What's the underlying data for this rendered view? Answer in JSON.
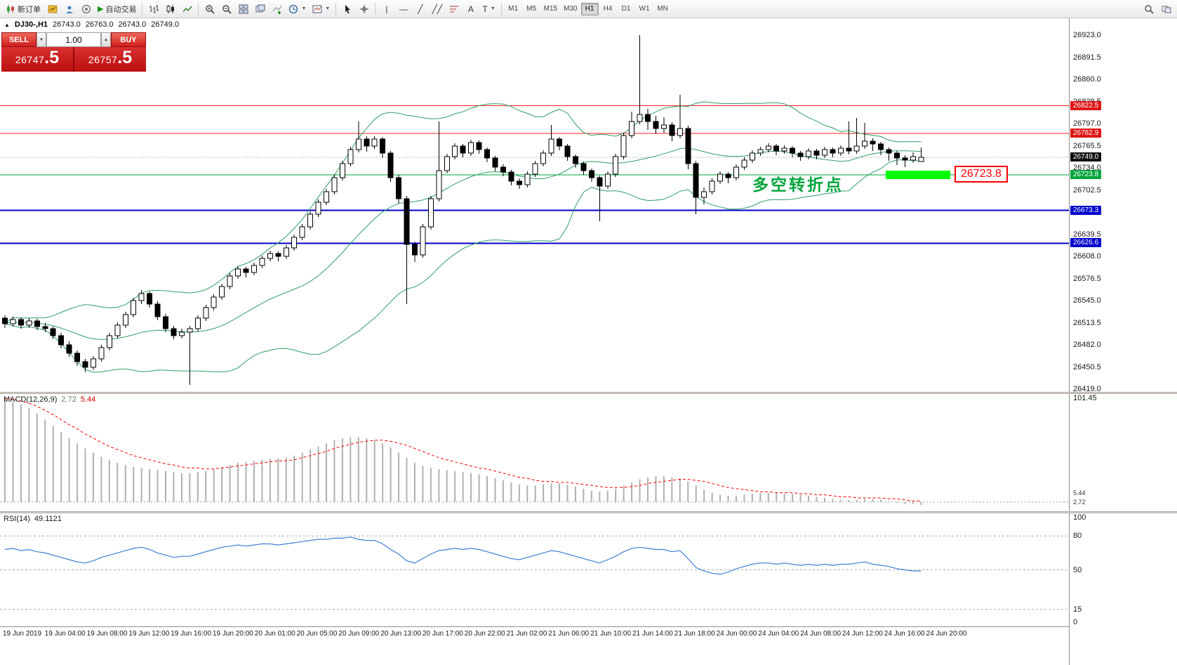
{
  "toolbar": {
    "new_order_label": "新订单",
    "auto_trading_label": "自动交易",
    "timeframes": [
      "M1",
      "M5",
      "M15",
      "M30",
      "H1",
      "H4",
      "D1",
      "W1",
      "MN"
    ],
    "active_timeframe": "H1"
  },
  "icons": {
    "toggle_up": "▲",
    "caret_down": "▼",
    "spin_up": "▲",
    "spin_down": "▼",
    "play": "▶",
    "text_tool": "A",
    "label_tool": "T",
    "vline_tool": "|",
    "hline_tool": "—",
    "trendline_tool": "╱",
    "channel_tool": "╱╱"
  },
  "symbol_header": {
    "title": "DJ30-,H1",
    "open": "26743.0",
    "high": "26763.0",
    "low": "26743.0",
    "close": "26749.0"
  },
  "order_panel": {
    "sell_label": "SELL",
    "buy_label": "BUY",
    "volume": "1.00",
    "sell_price_main": "26747",
    "sell_price_frac": ".5",
    "buy_price_main": "26757",
    "buy_price_frac": ".5"
  },
  "annotation": {
    "text": "多空转折点",
    "color": "#00a43b",
    "price": 26713
  },
  "highlight": {
    "label": "26723.8",
    "price": 26723.8,
    "bar_color": "#00ff00",
    "label_color": "#ff0000"
  },
  "time_labels": [
    "19 Jun 2019",
    "19 Jun 04:00",
    "19 Jun 08:00",
    "19 Jun 12:00",
    "19 Jun 16:00",
    "19 Jun 20:00",
    "20 Jun 01:00",
    "20 Jun 05:00",
    "20 Jun 09:00",
    "20 Jun 13:00",
    "20 Jun 17:00",
    "20 Jun 22:00",
    "21 Jun 02:00",
    "21 Jun 06:00",
    "21 Jun 10:00",
    "21 Jun 14:00",
    "21 Jun 18:00",
    "24 Jun 00:00",
    "24 Jun 04:00",
    "24 Jun 08:00",
    "24 Jun 12:00",
    "24 Jun 16:00",
    "24 Jun 20:00"
  ],
  "chart_data": [
    {
      "type": "candlestick",
      "symbol": "DJ30-",
      "timeframe": "H1",
      "ylim": [
        26415,
        26931
      ],
      "y_ticks": [
        "26923.0",
        "26891.5",
        "26860.0",
        "26828.5",
        "26797.0",
        "26765.5",
        "26734.0",
        "26702.5",
        "26671.0",
        "26639.5",
        "26608.0",
        "26576.5",
        "26545.0",
        "26513.5",
        "26482.0",
        "26450.5",
        "26419.0"
      ],
      "colors": {
        "up": "#ffffff",
        "down": "#000000",
        "stroke": "#000000",
        "bollinger": "#2e9e63"
      },
      "overlays": {
        "bollinger": {
          "period": 20,
          "deviation": 2
        }
      },
      "levels": [
        {
          "value": 26822.5,
          "line_color": "#ff2020",
          "badge_color": "#e01515",
          "badge_text": "#ffffff",
          "width": 1
        },
        {
          "value": 26782.9,
          "line_color": "#ff2020",
          "badge_color": "#e01515",
          "badge_text": "#ffffff",
          "width": 1
        },
        {
          "value": 26749.0,
          "line_color": "#b4b4b4",
          "dash": "2,2",
          "badge_color": "#111111",
          "badge_text": "#ffffff",
          "width": 1
        },
        {
          "value": 26723.8,
          "line_color": "#00a43b",
          "badge_color": "#00a43b",
          "badge_text": "#ffffff",
          "width": 1
        },
        {
          "value": 26673.3,
          "line_color": "#0000cc",
          "badge_color": "#0000cc",
          "badge_text": "#ffffff",
          "width": 2
        },
        {
          "value": 26626.6,
          "line_color": "#0000cc",
          "badge_color": "#0000cc",
          "badge_text": "#ffffff",
          "width": 2
        }
      ],
      "ohlc": [
        [
          26520,
          26524,
          26506,
          26512
        ],
        [
          26512,
          26522,
          26508,
          26518
        ],
        [
          26518,
          26521,
          26505,
          26510
        ],
        [
          26510,
          26520,
          26506,
          26516
        ],
        [
          26516,
          26519,
          26503,
          26508
        ],
        [
          26508,
          26513,
          26500,
          26505
        ],
        [
          26505,
          26508,
          26490,
          26495
        ],
        [
          26495,
          26499,
          26477,
          26482
        ],
        [
          26482,
          26487,
          26465,
          26470
        ],
        [
          26470,
          26474,
          26452,
          26458
        ],
        [
          26458,
          26462,
          26443,
          26450
        ],
        [
          26450,
          26466,
          26446,
          26462
        ],
        [
          26462,
          26482,
          26458,
          26478
        ],
        [
          26478,
          26499,
          26474,
          26495
        ],
        [
          26495,
          26514,
          26491,
          26510
        ],
        [
          26510,
          26529,
          26506,
          26525
        ],
        [
          26525,
          26549,
          26521,
          26545
        ],
        [
          26545,
          26560,
          26540,
          26555
        ],
        [
          26555,
          26558,
          26535,
          26540
        ],
        [
          26540,
          26544,
          26517,
          26522
        ],
        [
          26522,
          26526,
          26500,
          26505
        ],
        [
          26505,
          26509,
          26490,
          26495
        ],
        [
          26495,
          26505,
          26491,
          26500
        ],
        [
          26500,
          26509,
          26425,
          26505
        ],
        [
          26505,
          26524,
          26501,
          26520
        ],
        [
          26520,
          26539,
          26516,
          26535
        ],
        [
          26535,
          26554,
          26531,
          26550
        ],
        [
          26550,
          26569,
          26546,
          26565
        ],
        [
          26565,
          26584,
          26561,
          26580
        ],
        [
          26580,
          26594,
          26576,
          26590
        ],
        [
          26590,
          26593,
          26578,
          26585
        ],
        [
          26585,
          26599,
          26581,
          26595
        ],
        [
          26595,
          26609,
          26591,
          26605
        ],
        [
          26605,
          26616,
          26601,
          26612
        ],
        [
          26612,
          26615,
          26601,
          26608
        ],
        [
          26608,
          26624,
          26604,
          26620
        ],
        [
          26620,
          26639,
          26616,
          26635
        ],
        [
          26635,
          26654,
          26631,
          26650
        ],
        [
          26650,
          26672,
          26646,
          26668
        ],
        [
          26668,
          26689,
          26664,
          26685
        ],
        [
          26685,
          26704,
          26681,
          26700
        ],
        [
          26700,
          26724,
          26696,
          26720
        ],
        [
          26720,
          26744,
          26716,
          26740
        ],
        [
          26740,
          26764,
          26736,
          26760
        ],
        [
          26760,
          26800,
          26756,
          26775
        ],
        [
          26775,
          26779,
          26757,
          26765
        ],
        [
          26765,
          26779,
          26761,
          26775
        ],
        [
          26775,
          26778,
          26748,
          26755
        ],
        [
          26755,
          26758,
          26714,
          26720
        ],
        [
          26720,
          26724,
          26683,
          26690
        ],
        [
          26690,
          26694,
          26540,
          26625
        ],
        [
          26625,
          26629,
          26600,
          26610
        ],
        [
          26610,
          26654,
          26606,
          26650
        ],
        [
          26650,
          26694,
          26646,
          26690
        ],
        [
          26690,
          26800,
          26686,
          26730
        ],
        [
          26730,
          26754,
          26726,
          26750
        ],
        [
          26750,
          26769,
          26746,
          26765
        ],
        [
          26765,
          26768,
          26749,
          26755
        ],
        [
          26755,
          26774,
          26751,
          26770
        ],
        [
          26770,
          26773,
          26754,
          26760
        ],
        [
          26760,
          26763,
          26742,
          26748
        ],
        [
          26748,
          26751,
          26729,
          26735
        ],
        [
          26735,
          26739,
          26722,
          26728
        ],
        [
          26728,
          26731,
          26709,
          26715
        ],
        [
          26715,
          26719,
          26704,
          26710
        ],
        [
          26710,
          26729,
          26706,
          26725
        ],
        [
          26725,
          26744,
          26721,
          26740
        ],
        [
          26740,
          26759,
          26736,
          26755
        ],
        [
          26755,
          26795,
          26751,
          26775
        ],
        [
          26775,
          26778,
          26759,
          26765
        ],
        [
          26765,
          26768,
          26744,
          26750
        ],
        [
          26750,
          26753,
          26734,
          26740
        ],
        [
          26740,
          26743,
          26724,
          26730
        ],
        [
          26730,
          26733,
          26714,
          26720
        ],
        [
          26720,
          26723,
          26658,
          26708
        ],
        [
          26708,
          26729,
          26704,
          26725
        ],
        [
          26725,
          26754,
          26721,
          26750
        ],
        [
          26750,
          26784,
          26746,
          26780
        ],
        [
          26780,
          26814,
          26776,
          26800
        ],
        [
          26800,
          26923,
          26796,
          26810
        ],
        [
          26810,
          26818,
          26788,
          26800
        ],
        [
          26800,
          26808,
          26782,
          26790
        ],
        [
          26790,
          26806,
          26784,
          26795
        ],
        [
          26795,
          26799,
          26772,
          26780
        ],
        [
          26780,
          26838,
          26776,
          26790
        ],
        [
          26790,
          26794,
          26732,
          26740
        ],
        [
          26740,
          26744,
          26668,
          26692
        ],
        [
          26692,
          26706,
          26682,
          26700
        ],
        [
          26700,
          26719,
          26696,
          26715
        ],
        [
          26715,
          26729,
          26711,
          26725
        ],
        [
          26725,
          26728,
          26712,
          26720
        ],
        [
          26720,
          26739,
          26716,
          26735
        ],
        [
          26735,
          26749,
          26731,
          26745
        ],
        [
          26745,
          26759,
          26741,
          26755
        ],
        [
          26755,
          26764,
          26751,
          26760
        ],
        [
          26760,
          26769,
          26756,
          26765
        ],
        [
          26765,
          26768,
          26752,
          26758
        ],
        [
          26758,
          26766,
          26754,
          26762
        ],
        [
          26762,
          26765,
          26749,
          26755
        ],
        [
          26755,
          26758,
          26744,
          26750
        ],
        [
          26750,
          26762,
          26746,
          26758
        ],
        [
          26758,
          26761,
          26746,
          26752
        ],
        [
          26752,
          26764,
          26748,
          26760
        ],
        [
          26760,
          26763,
          26749,
          26755
        ],
        [
          26755,
          26766,
          26751,
          26762
        ],
        [
          26762,
          26800,
          26753,
          26758
        ],
        [
          26758,
          26805,
          26754,
          26765
        ],
        [
          26765,
          26798,
          26761,
          26772
        ],
        [
          26772,
          26776,
          26758,
          26768
        ],
        [
          26768,
          26771,
          26752,
          26760
        ],
        [
          26760,
          26763,
          26744,
          26755
        ],
        [
          26755,
          26758,
          26738,
          26748
        ],
        [
          26748,
          26752,
          26735,
          26745
        ],
        [
          26745,
          26756,
          26741,
          26750
        ],
        [
          26743,
          26763,
          26743,
          26749
        ]
      ]
    },
    {
      "type": "macd",
      "label": "MACD(12,26,9)",
      "value_main": "2.72",
      "value_signal": "5.44",
      "ylim": [
        -9,
        105
      ],
      "y_tick_top": "101.45",
      "colors": {
        "histogram": "#b0b0b0",
        "signal": "#ff0000",
        "zero": "#999999"
      },
      "histogram": [
        100,
        98,
        95,
        91,
        86,
        80,
        74,
        68,
        62,
        57,
        52,
        48,
        44,
        41,
        38,
        36,
        34,
        33,
        32,
        31,
        30,
        29,
        28,
        28,
        29,
        30,
        32,
        34,
        36,
        38,
        39,
        40,
        41,
        42,
        42,
        43,
        45,
        48,
        51,
        54,
        57,
        60,
        62,
        63,
        63,
        62,
        60,
        57,
        53,
        48,
        43,
        38,
        35,
        33,
        32,
        31,
        30,
        29,
        28,
        27,
        25,
        23,
        21,
        19,
        17,
        16,
        16,
        17,
        18,
        18,
        17,
        15,
        13,
        11,
        10,
        11,
        13,
        16,
        19,
        22,
        24,
        25,
        25,
        24,
        23,
        20,
        16,
        12,
        9,
        7,
        6,
        6,
        7,
        8,
        9,
        9,
        9,
        8,
        8,
        7,
        6,
        5,
        4,
        3,
        2,
        2,
        2,
        3,
        3,
        2,
        0,
        -1,
        -2,
        -2,
        -3
      ],
      "signal": [
        101,
        100,
        98,
        96,
        93,
        89,
        85,
        80,
        75,
        71,
        66,
        62,
        58,
        54,
        51,
        48,
        45,
        43,
        41,
        39,
        37,
        36,
        34,
        33,
        33,
        32,
        32,
        33,
        34,
        35,
        36,
        37,
        38,
        39,
        40,
        40,
        41,
        43,
        45,
        47,
        49,
        52,
        54,
        56,
        58,
        59,
        60,
        60,
        59,
        57,
        55,
        52,
        49,
        46,
        43,
        41,
        39,
        37,
        35,
        33,
        32,
        30,
        28,
        26,
        24,
        23,
        21,
        20,
        20,
        19,
        19,
        18,
        17,
        16,
        15,
        14,
        14,
        14,
        15,
        16,
        18,
        19,
        20,
        21,
        22,
        22,
        21,
        20,
        18,
        16,
        14,
        13,
        12,
        11,
        10,
        10,
        9,
        9,
        9,
        8,
        8,
        7,
        7,
        6,
        5,
        5,
        4,
        4,
        4,
        4,
        3,
        3,
        2,
        1,
        1
      ]
    },
    {
      "type": "rsi",
      "label": "RSI(14)",
      "value": "49.1121",
      "ylim": [
        0,
        100
      ],
      "levels": [
        80,
        50,
        15
      ],
      "y_ticks": [
        "100",
        "80",
        "50",
        "15",
        "0"
      ],
      "colors": {
        "line": "#3e7fd4",
        "level": "#aaaaaa"
      },
      "values": [
        68,
        69,
        67,
        68,
        66,
        65,
        63,
        61,
        59,
        57,
        56,
        58,
        61,
        63,
        65,
        67,
        69,
        70,
        68,
        65,
        63,
        61,
        62,
        62,
        64,
        66,
        68,
        70,
        71,
        72,
        71,
        72,
        73,
        73,
        72,
        73,
        74,
        75,
        76,
        77,
        77,
        78,
        78,
        79,
        77,
        76,
        76,
        73,
        68,
        64,
        58,
        56,
        60,
        64,
        67,
        68,
        69,
        68,
        69,
        68,
        66,
        64,
        62,
        60,
        59,
        61,
        63,
        65,
        67,
        66,
        64,
        62,
        60,
        58,
        56,
        59,
        62,
        66,
        69,
        70,
        69,
        68,
        68,
        66,
        67,
        60,
        52,
        49,
        47,
        46,
        48,
        51,
        53,
        55,
        56,
        56,
        55,
        56,
        55,
        54,
        55,
        54,
        55,
        54,
        55,
        55,
        56,
        57,
        55,
        54,
        53,
        51,
        50,
        49,
        49
      ]
    }
  ]
}
